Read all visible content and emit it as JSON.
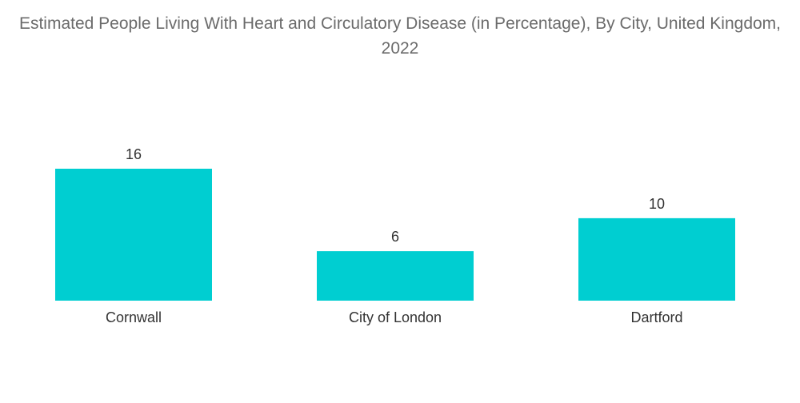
{
  "chart_data": {
    "type": "bar",
    "title": "Estimated People Living With Heart and Circulatory Disease (in Percentage), By City, United Kingdom, 2022",
    "categories": [
      "Cornwall",
      "City of London",
      "Dartford"
    ],
    "values": [
      16,
      6,
      10
    ],
    "data_labels": [
      "16",
      "6",
      "10"
    ],
    "xlabel": "",
    "ylabel": "",
    "ylim": [
      0,
      16
    ],
    "grid": false,
    "legend": "none",
    "bar_color": "#00CED1"
  }
}
